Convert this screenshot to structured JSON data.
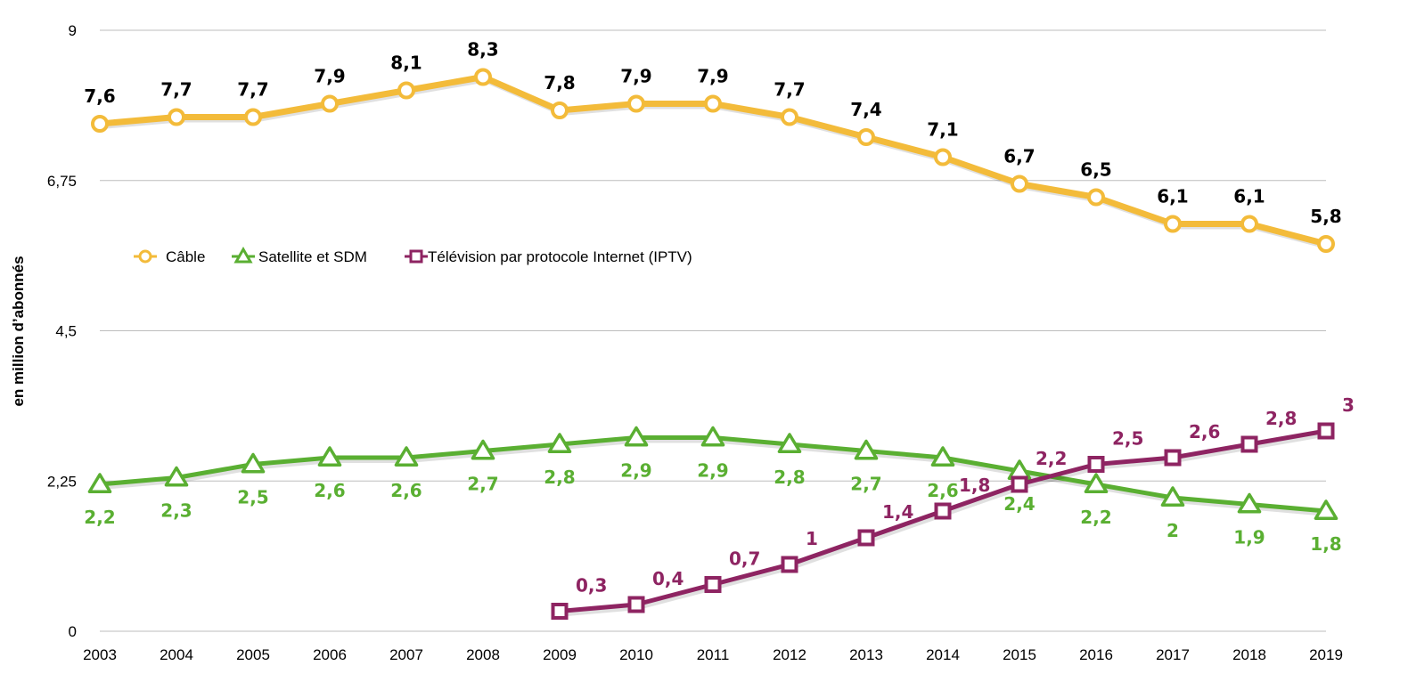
{
  "chart_data": {
    "type": "line",
    "ylabel": "en million d’abonnés",
    "xlabel": "",
    "title": "",
    "ylim": [
      0,
      9
    ],
    "yticks": [
      0,
      2.25,
      4.5,
      6.75,
      9
    ],
    "ytick_labels": [
      "0",
      "2,25",
      "4,5",
      "6,75",
      "9"
    ],
    "grid": true,
    "legend_position": "upper-left",
    "x": [
      "2003",
      "2004",
      "2005",
      "2006",
      "2007",
      "2008",
      "2009",
      "2010",
      "2011",
      "2012",
      "2013",
      "2014",
      "2015",
      "2016",
      "2017",
      "2018",
      "2019"
    ],
    "series": [
      {
        "name": "Câble",
        "marker": "circle",
        "color": "#f3bb3a",
        "label_color": "#000000",
        "label_position": "above",
        "values": [
          7.6,
          7.7,
          7.7,
          7.9,
          8.1,
          8.3,
          7.8,
          7.9,
          7.9,
          7.7,
          7.4,
          7.1,
          6.7,
          6.5,
          6.1,
          6.1,
          5.8
        ],
        "labels": [
          "7,6",
          "7,7",
          "7,7",
          "7,9",
          "8,1",
          "8,3",
          "7,8",
          "7,9",
          "7,9",
          "7,7",
          "7,4",
          "7,1",
          "6,7",
          "6,5",
          "6,1",
          "6,1",
          "5,8"
        ]
      },
      {
        "name": "Satellite et SDM",
        "marker": "triangle",
        "color": "#5aaf32",
        "label_color": "#5aaf32",
        "label_position": "below",
        "values": [
          2.2,
          2.3,
          2.5,
          2.6,
          2.6,
          2.7,
          2.8,
          2.9,
          2.9,
          2.8,
          2.7,
          2.6,
          2.4,
          2.2,
          2.0,
          1.9,
          1.8
        ],
        "labels": [
          "2,2",
          "2,3",
          "2,5",
          "2,6",
          "2,6",
          "2,7",
          "2,8",
          "2,9",
          "2,9",
          "2,8",
          "2,7",
          "2,6",
          "2,4",
          "2,2",
          "2",
          "1,9",
          "1,8"
        ]
      },
      {
        "name": "Télévision par protocole Internet (IPTV)",
        "marker": "square",
        "color": "#8e2462",
        "label_color": "#8e2462",
        "label_position": "above-right",
        "values": [
          null,
          null,
          null,
          null,
          null,
          null,
          0.3,
          0.4,
          0.7,
          1.0,
          1.4,
          1.8,
          2.2,
          2.5,
          2.6,
          2.8,
          3.0
        ],
        "labels": [
          "",
          "",
          "",
          "",
          "",
          "",
          "0,3",
          "0,4",
          "0,7",
          "1",
          "1,4",
          "1,8",
          "2,2",
          "2,5",
          "2,6",
          "2,8",
          "3"
        ]
      }
    ]
  }
}
